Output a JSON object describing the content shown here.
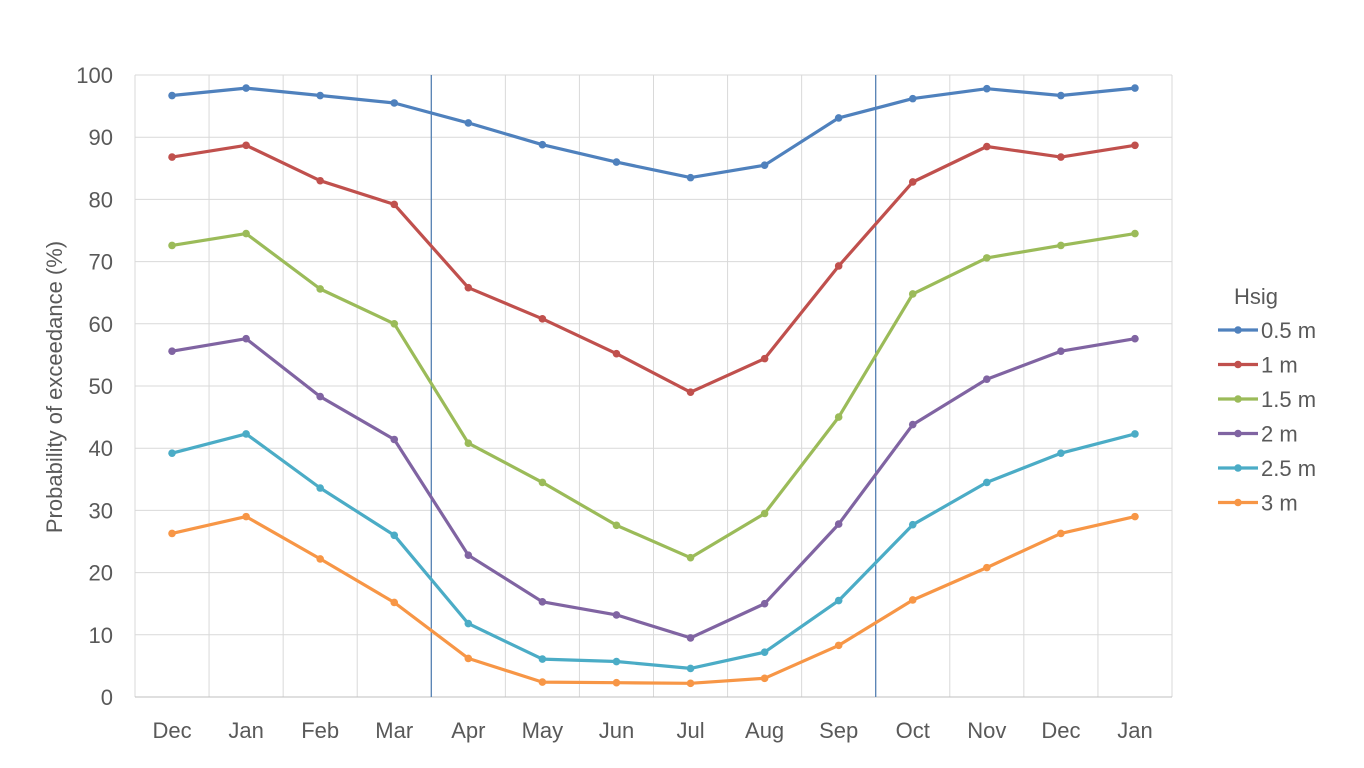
{
  "chart_data": {
    "type": "line",
    "title": "",
    "xlabel": "",
    "ylabel": "Probability of  exceedance (%)",
    "ylim": [
      0,
      100
    ],
    "y_ticks": [
      0,
      10,
      20,
      30,
      40,
      50,
      60,
      70,
      80,
      90,
      100
    ],
    "y_tick_labels": [
      "0",
      "10",
      "20",
      "30",
      "40",
      "50",
      "60",
      "70",
      "80",
      "90",
      "100"
    ],
    "grid": true,
    "categories": [
      "Dec",
      "Jan",
      "Feb",
      "Mar",
      "Apr",
      "May",
      "Jun",
      "Jul",
      "Aug",
      "Sep",
      "Oct",
      "Nov",
      "Dec",
      "Jan"
    ],
    "reference_lines_between": [
      [
        "Mar",
        "Apr"
      ],
      [
        "Sep",
        "Oct"
      ]
    ],
    "reference_line_color": "#4a7ab0",
    "legend": {
      "title": "Hsig",
      "position": "right"
    },
    "series": [
      {
        "name": "0.5 m",
        "color": "#4f81bd",
        "values": [
          96.7,
          97.9,
          96.7,
          95.5,
          92.3,
          88.8,
          86.0,
          83.5,
          85.5,
          93.1,
          96.2,
          97.8,
          96.7,
          97.9
        ]
      },
      {
        "name": "1 m",
        "color": "#c0504d",
        "values": [
          86.8,
          88.7,
          83.0,
          79.2,
          65.8,
          60.8,
          55.2,
          49.0,
          54.4,
          69.3,
          82.8,
          88.5,
          86.8,
          88.7
        ]
      },
      {
        "name": "1.5 m",
        "color": "#9bbb59",
        "values": [
          72.6,
          74.5,
          65.6,
          60.0,
          40.8,
          34.5,
          27.6,
          22.4,
          29.5,
          45.0,
          64.8,
          70.6,
          72.6,
          74.5
        ]
      },
      {
        "name": "2 m",
        "color": "#8064a2",
        "values": [
          55.6,
          57.6,
          48.3,
          41.4,
          22.8,
          15.3,
          13.2,
          9.5,
          15.0,
          27.8,
          43.8,
          51.1,
          55.6,
          57.6
        ]
      },
      {
        "name": "2.5 m",
        "color": "#4bacc6",
        "values": [
          39.2,
          42.3,
          33.6,
          26.0,
          11.8,
          6.1,
          5.7,
          4.6,
          7.2,
          15.5,
          27.7,
          34.5,
          39.2,
          42.3
        ]
      },
      {
        "name": "3 m",
        "color": "#f79646",
        "values": [
          26.3,
          29.0,
          22.2,
          15.2,
          6.2,
          2.4,
          2.3,
          2.2,
          3.0,
          8.3,
          15.6,
          20.8,
          26.3,
          29.0
        ]
      }
    ]
  }
}
